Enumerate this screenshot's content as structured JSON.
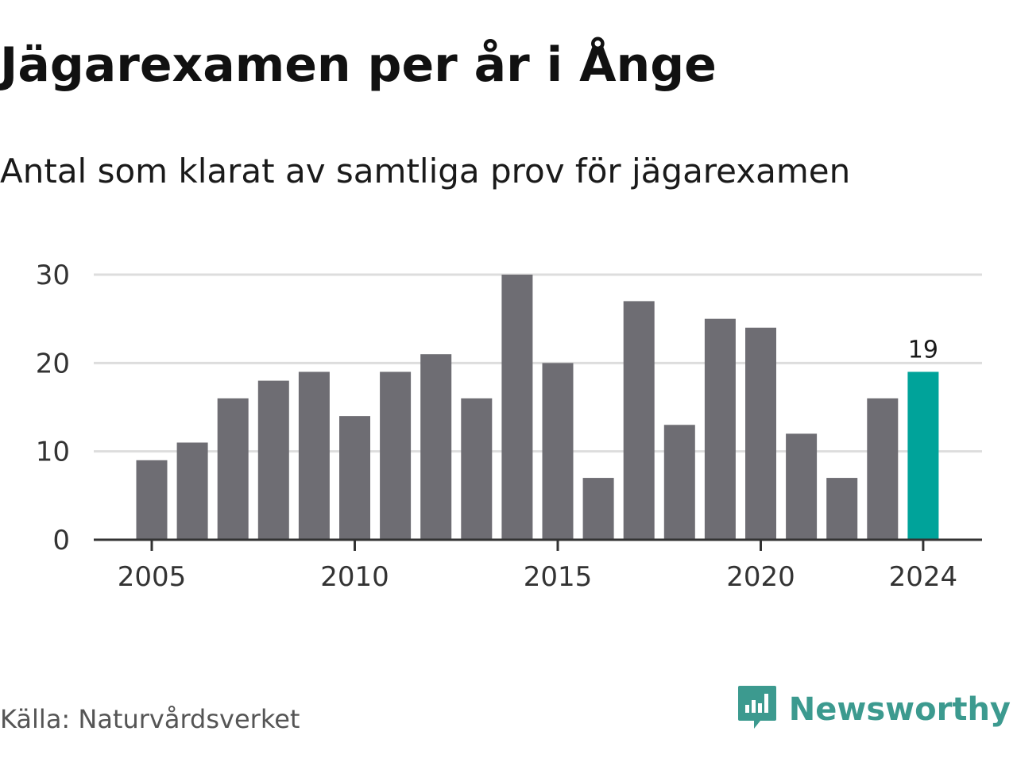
{
  "title": "Jägarexamen per år i Ånge",
  "subtitle": "Antal som klarat av samtliga prov för jägarexamen",
  "source": "Källa: Naturvårdsverket",
  "brand": {
    "name": "Newsworthy",
    "icon": "newsworthy-logo-icon",
    "color": "#3c9a8f"
  },
  "colors": {
    "bar": "#6e6d73",
    "highlight": "#00a39a",
    "grid": "#dddddd",
    "axis": "#333333"
  },
  "chart_data": {
    "type": "bar",
    "x": [
      2005,
      2006,
      2007,
      2008,
      2009,
      2010,
      2011,
      2012,
      2013,
      2014,
      2015,
      2016,
      2017,
      2018,
      2019,
      2020,
      2021,
      2022,
      2023,
      2024
    ],
    "values": [
      9,
      11,
      16,
      18,
      19,
      14,
      19,
      21,
      16,
      30,
      20,
      7,
      27,
      13,
      25,
      24,
      12,
      7,
      16,
      19
    ],
    "highlight": 2024,
    "data_labels": [
      {
        "x": 2024,
        "text": "19"
      }
    ],
    "x_ticks": [
      2005,
      2010,
      2015,
      2020,
      2024
    ],
    "y_ticks": [
      0,
      10,
      20,
      30
    ],
    "ylim": [
      0,
      30
    ],
    "xlabel": "",
    "ylabel": "",
    "grid": true,
    "legend": "none"
  }
}
